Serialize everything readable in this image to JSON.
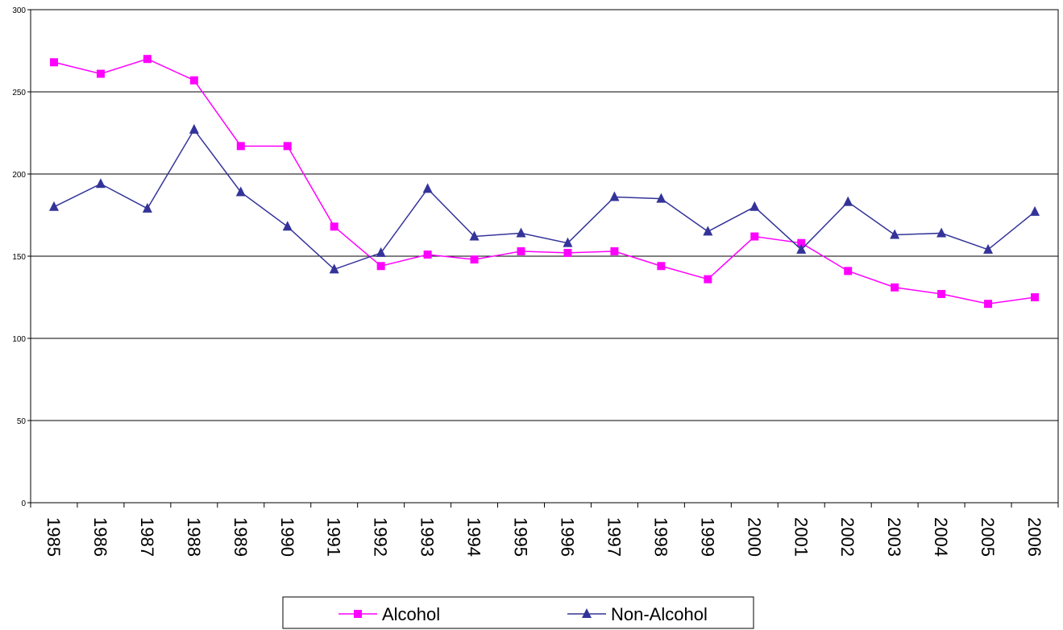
{
  "chart_data": {
    "type": "line",
    "categories": [
      "1985",
      "1986",
      "1987",
      "1988",
      "1989",
      "1990",
      "1991",
      "1992",
      "1993",
      "1994",
      "1995",
      "1996",
      "1997",
      "1998",
      "1999",
      "2000",
      "2001",
      "2002",
      "2003",
      "2004",
      "2005",
      "2006"
    ],
    "series": [
      {
        "name": "Alcohol",
        "color": "#ff00ff",
        "marker": "square",
        "values": [
          268,
          261,
          270,
          257,
          217,
          217,
          168,
          144,
          151,
          148,
          153,
          152,
          153,
          144,
          136,
          162,
          158,
          141,
          131,
          127,
          121,
          125
        ]
      },
      {
        "name": "Non-Alcohol",
        "color": "#333399",
        "marker": "triangle",
        "values": [
          180,
          194,
          179,
          227,
          189,
          168,
          142,
          152,
          191,
          162,
          164,
          158,
          186,
          185,
          165,
          180,
          154,
          183,
          163,
          164,
          154,
          177
        ]
      }
    ],
    "ylim": [
      0,
      300
    ],
    "yticks": [
      0,
      50,
      100,
      150,
      200,
      250,
      300
    ],
    "grid": true,
    "legend": "bottom"
  }
}
